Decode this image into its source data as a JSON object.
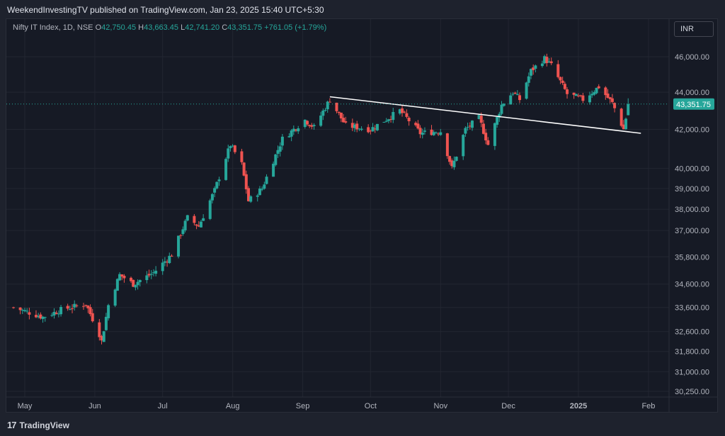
{
  "header": {
    "published_text": "WeekendInvestingTV published on TradingView.com, Jan 23, 2025 15:40 UTC+5:30"
  },
  "legend": {
    "symbol": "Nifty IT Index, 1D, NSE",
    "open_label": "O",
    "open": "42,750.45",
    "high_label": "H",
    "high": "43,663.45",
    "low_label": "L",
    "low": "42,741.20",
    "close_label": "C",
    "close": "43,351.75",
    "change": "+761.05 (+1.79%)"
  },
  "currency_button": "INR",
  "footer": {
    "logo_mark": "17",
    "logo_text": "TradingView"
  },
  "colors": {
    "up": "#26a69a",
    "down": "#ef5350",
    "background": "#161a25",
    "grid": "#222631",
    "trendline": "#ffffff",
    "price_tag": "#26a69a"
  },
  "chart_data": {
    "type": "candlestick",
    "scale": "log",
    "y_ticks": [
      46000,
      44000,
      42000,
      40000,
      39000,
      38000,
      37000,
      35800,
      34600,
      33600,
      32600,
      31800,
      31000,
      30250
    ],
    "y_tick_labels": [
      "46,000.00",
      "44,000.00",
      "42,000.00",
      "40,000.00",
      "39,000.00",
      "38,000.00",
      "37,000.00",
      "35,800.00",
      "34,600.00",
      "33,600.00",
      "32,600.00",
      "31,800.00",
      "31,000.00",
      "30,250.00"
    ],
    "x_tick_labels": [
      "May",
      "Jun",
      "Jul",
      "Aug",
      "Sep",
      "Oct",
      "Nov",
      "Dec",
      "2025",
      "Feb"
    ],
    "x_tick_dates": [
      "2024-05-01",
      "2024-06-01",
      "2024-07-01",
      "2024-08-01",
      "2024-09-01",
      "2024-10-01",
      "2024-11-01",
      "2024-12-01",
      "2025-01-01",
      "2025-02-01"
    ],
    "last_price": 43351.75,
    "last_price_label": "43,351.75",
    "trendline": {
      "start": {
        "date": "2024-09-13",
        "price": 43750
      },
      "end": {
        "date": "2025-01-23",
        "price": 41850
      }
    },
    "anchors": [
      {
        "date": "2024-04-26",
        "close": 33600
      },
      {
        "date": "2024-05-09",
        "close": 33200
      },
      {
        "date": "2024-05-17",
        "close": 33500
      },
      {
        "date": "2024-05-28",
        "close": 33750
      },
      {
        "date": "2024-06-03",
        "close": 32500
      },
      {
        "date": "2024-06-04",
        "close": 32200
      },
      {
        "date": "2024-06-07",
        "close": 33700
      },
      {
        "date": "2024-06-12",
        "close": 35000
      },
      {
        "date": "2024-06-18",
        "close": 34600
      },
      {
        "date": "2024-06-27",
        "close": 35100
      },
      {
        "date": "2024-07-05",
        "close": 35900
      },
      {
        "date": "2024-07-12",
        "close": 37600
      },
      {
        "date": "2024-07-17",
        "close": 37200
      },
      {
        "date": "2024-07-24",
        "close": 38900
      },
      {
        "date": "2024-07-31",
        "close": 41200
      },
      {
        "date": "2024-08-05",
        "close": 40200
      },
      {
        "date": "2024-08-08",
        "close": 38400
      },
      {
        "date": "2024-08-14",
        "close": 39000
      },
      {
        "date": "2024-08-23",
        "close": 41500
      },
      {
        "date": "2024-09-02",
        "close": 42500
      },
      {
        "date": "2024-09-06",
        "close": 42100
      },
      {
        "date": "2024-09-13",
        "close": 43600
      },
      {
        "date": "2024-09-20",
        "close": 42200
      },
      {
        "date": "2024-10-01",
        "close": 42000
      },
      {
        "date": "2024-10-14",
        "close": 43000
      },
      {
        "date": "2024-10-23",
        "close": 41800
      },
      {
        "date": "2024-11-01",
        "close": 41900
      },
      {
        "date": "2024-11-06",
        "close": 40000
      },
      {
        "date": "2024-11-12",
        "close": 42000
      },
      {
        "date": "2024-11-18",
        "close": 42600
      },
      {
        "date": "2024-11-22",
        "close": 41200
      },
      {
        "date": "2024-11-28",
        "close": 43300
      },
      {
        "date": "2024-12-03",
        "close": 44000
      },
      {
        "date": "2024-12-06",
        "close": 43600
      },
      {
        "date": "2024-12-11",
        "close": 45200
      },
      {
        "date": "2024-12-17",
        "close": 45900
      },
      {
        "date": "2024-12-20",
        "close": 45500
      },
      {
        "date": "2024-12-27",
        "close": 43900
      },
      {
        "date": "2025-01-03",
        "close": 43600
      },
      {
        "date": "2025-01-10",
        "close": 44300
      },
      {
        "date": "2025-01-16",
        "close": 43400
      },
      {
        "date": "2025-01-21",
        "close": 42000
      },
      {
        "date": "2025-01-22",
        "close": 42590
      },
      {
        "date": "2025-01-23",
        "close": 43351.75
      }
    ]
  }
}
